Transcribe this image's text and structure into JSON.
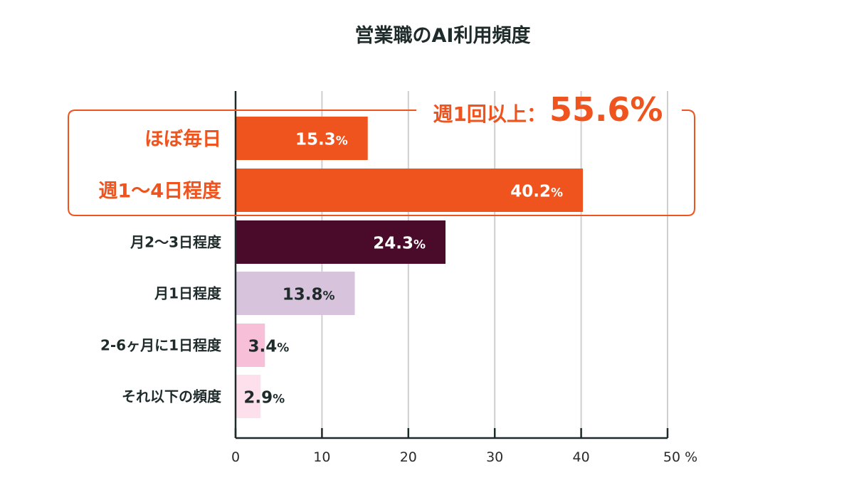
{
  "title": "営業職のAI利用頻度",
  "callout": {
    "label": "週1回以上：",
    "value": "55.6%"
  },
  "colors": {
    "highlight": "#f0541e",
    "axis": "#1f2a2a",
    "grid": "#cfcfcf"
  },
  "chart_data": {
    "type": "bar",
    "orientation": "horizontal",
    "title": "営業職のAI利用頻度",
    "categories": [
      "ほぼ毎日",
      "週1〜4日程度",
      "月2〜3日程度",
      "月1日程度",
      "2-6ヶ月に1日程度",
      "それ以下の頻度"
    ],
    "values": [
      15.3,
      40.2,
      24.3,
      13.8,
      3.4,
      2.9
    ],
    "value_labels": [
      "15.3",
      "40.2",
      "24.3",
      "13.8",
      "3.4",
      "2.9"
    ],
    "value_unit": "%",
    "bar_colors": [
      "#f0541e",
      "#f0541e",
      "#4a0a2a",
      "#d7c4dc",
      "#f7c0d8",
      "#fde0ec"
    ],
    "label_colors": [
      "#ffffff",
      "#ffffff",
      "#ffffff",
      "#1f2a2a",
      "#1f2a2a",
      "#1f2a2a"
    ],
    "highlighted": [
      true,
      true,
      false,
      false,
      false,
      false
    ],
    "xlim": [
      0,
      50
    ],
    "xticks": [
      0,
      10,
      20,
      30,
      40,
      50
    ],
    "xtick_labels": [
      "0",
      "10",
      "20",
      "30",
      "40",
      "50 %"
    ],
    "grid": true,
    "callout_group": "週1回以上：55.6%"
  }
}
